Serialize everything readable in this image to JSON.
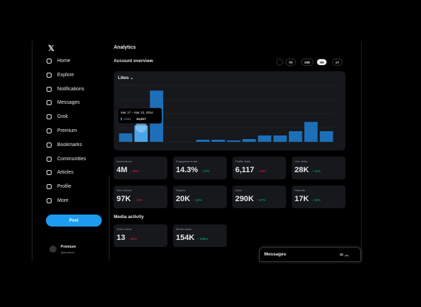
{
  "sidebar": {
    "nav": [
      "Home",
      "Explore",
      "Notifications",
      "Messages",
      "Grok",
      "Premium",
      "Bookmarks",
      "Communities",
      "Articles",
      "Profile",
      "More"
    ],
    "post_button": "Post",
    "account": {
      "name": "Premium",
      "handle": "@premium"
    }
  },
  "main": {
    "title": "Analytics",
    "overview_title": "Account overview",
    "periods": [
      "7D",
      "28D",
      "3M",
      "1Y"
    ],
    "active_period": 2,
    "chart": {
      "type": "bar",
      "metric": "Likes",
      "color": "#1d6fb8",
      "highlight_color": "#4aa3e8",
      "highlight": 1,
      "values": [
        18000,
        34817,
        109000,
        0,
        0,
        4500,
        4500,
        3000,
        6000,
        13600,
        13600,
        22700,
        42400,
        22700
      ],
      "ylim": [
        0,
        120000
      ],
      "tooltip": {
        "date": "Mar 17 – Mar 23, 2024",
        "label": "Likes",
        "value": "34,817"
      }
    },
    "metrics": [
      {
        "label": "Impressions",
        "value": "4M",
        "change": "35%",
        "dir": "down"
      },
      {
        "label": "Engagement rate",
        "value": "14.3%",
        "change": "23%",
        "dir": "up"
      },
      {
        "label": "Profile visits",
        "value": "6,117",
        "change": "16%",
        "dir": "down"
      },
      {
        "label": "Link clicks",
        "value": "28K",
        "change": "22%",
        "dir": "up"
      },
      {
        "label": "New follows",
        "value": "97K",
        "change": "16%",
        "dir": "down"
      },
      {
        "label": "Replies",
        "value": "20K",
        "change": "18%",
        "dir": "up"
      },
      {
        "label": "Likes",
        "value": "290K",
        "change": "67%",
        "dir": "up"
      },
      {
        "label": "Reposts",
        "value": "17K",
        "change": "40%",
        "dir": "up"
      }
    ],
    "media_title": "Media activity",
    "media_metrics": [
      {
        "label": "Video views",
        "value": "13",
        "change": "98%",
        "dir": "down"
      },
      {
        "label": "Media views",
        "value": "154K",
        "change": "236%",
        "dir": "up"
      }
    ],
    "messages_bar": "Messages"
  }
}
